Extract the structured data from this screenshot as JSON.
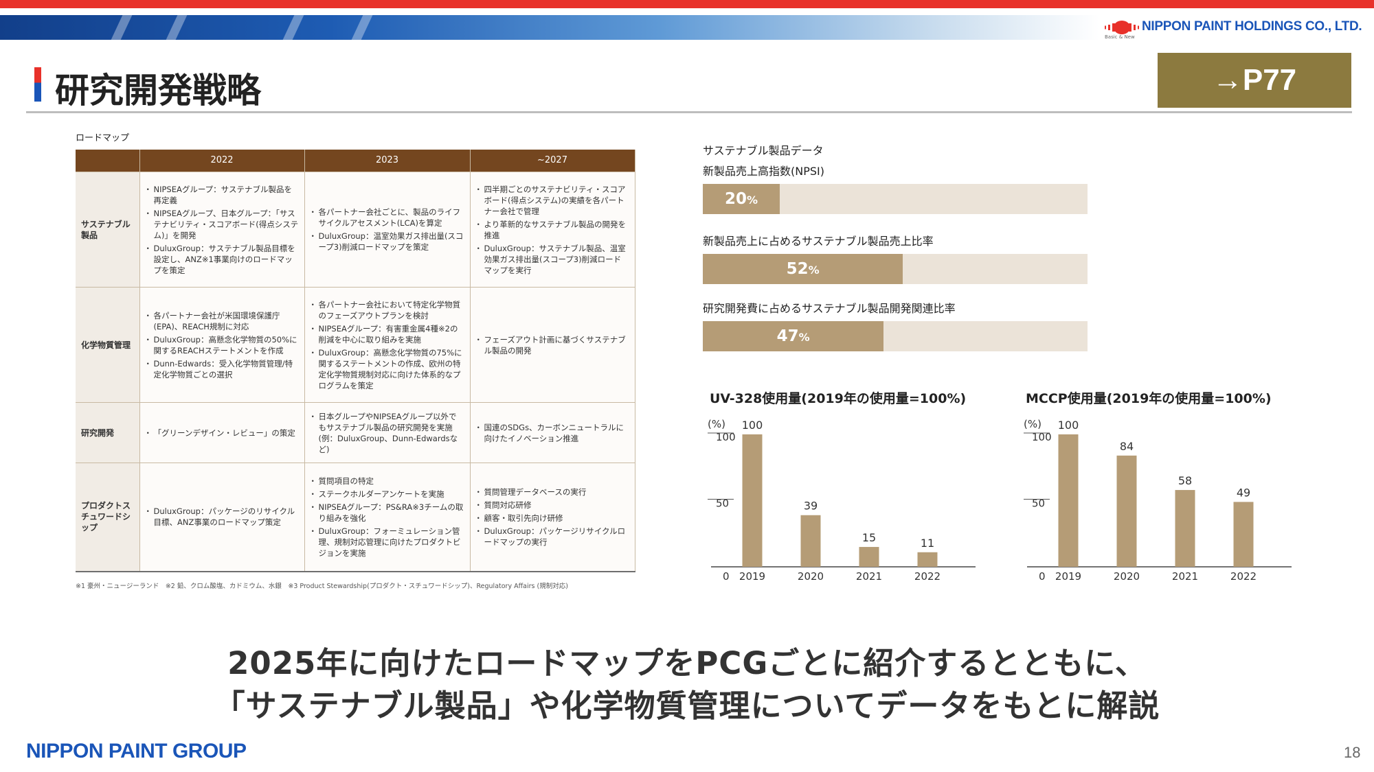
{
  "header": {
    "company_name": "NIPPON PAINT HOLDINGS CO., LTD.",
    "logo_tagline": "Basic & New",
    "title": "研究開発戦略",
    "page_ref": "→P77"
  },
  "roadmap": {
    "label": "ロードマップ",
    "columns": [
      "2022",
      "2023",
      "~2027"
    ],
    "rows": [
      {
        "name": "サステナブル製品",
        "cells": [
          [
            "NIPSEAグループ：サステナブル製品を再定義",
            "NIPSEAグループ、日本グループ：「サステナビリティ・スコアボード(得点システム)」を開発",
            "DuluxGroup：サステナブル製品目標を設定し、ANZ※1事業向けのロードマップを策定"
          ],
          [
            "各パートナー会社ごとに、製品のライフサイクルアセスメント(LCA)を算定",
            "DuluxGroup：温室効果ガス排出量(スコープ3)削減ロードマップを策定"
          ],
          [
            "四半期ごとのサステナビリティ・スコアボード(得点システム)の実績を各パートナー会社で管理",
            "より革新的なサステナブル製品の開発を推進",
            "DuluxGroup：サステナブル製品、温室効果ガス排出量(スコープ3)削減ロードマップを実行"
          ]
        ]
      },
      {
        "name": "化学物質管理",
        "cells": [
          [
            "各パートナー会社が米国環境保護庁(EPA)、REACH規制に対応",
            "DuluxGroup：高懸念化学物質の50%に関するREACHステートメントを作成",
            "Dunn-Edwards：受入化学物質管理/特定化学物質ごとの選択"
          ],
          [
            "各パートナー会社において特定化学物質のフェーズアウトプランを検討",
            "NIPSEAグループ：有害重金属4種※2の削減を中心に取り組みを実施",
            "DuluxGroup：高懸念化学物質の75%に関するステートメントの作成、欧州の特定化学物質規制対応に向けた体系的なプログラムを策定"
          ],
          [
            "フェーズアウト計画に基づくサステナブル製品の開発"
          ]
        ]
      },
      {
        "name": "研究開発",
        "cells": [
          [
            "「グリーンデザイン・レビュー」の策定"
          ],
          [
            "日本グループやNIPSEAグループ以外でもサステナブル製品の研究開発を実施(例：DuluxGroup、Dunn-Edwardsなど)"
          ],
          [
            "国連のSDGs、カーボンニュートラルに向けたイノベーション推進"
          ]
        ]
      },
      {
        "name": "プロダクトスチュワードシップ",
        "cells": [
          [
            "DuluxGroup：パッケージのリサイクル目標、ANZ事業のロードマップ策定"
          ],
          [
            "質問項目の特定",
            "ステークホルダーアンケートを実施",
            "NIPSEAグループ：PS&RA※3チームの取り組みを強化",
            "DuluxGroup：フォーミュレーション管理、規制対応管理に向けたプロダクトビジョンを実施"
          ],
          [
            "質問管理データベースの実行",
            "質問対応研修",
            "顧客・取引先向け研修",
            "DuluxGroup：パッケージリサイクルロードマップの実行"
          ]
        ]
      }
    ],
    "footnote": "※1 豪州・ニュージーランド　※2 鉛、クロム酸塩、カドミウム、水銀　※3 Product Stewardship(プロダクト・スチュワードシップ)、Regulatory Affairs (規制対応)"
  },
  "sustainable_data": {
    "title": "サステナブル製品データ",
    "bars": [
      {
        "label": "新製品売上高指数(NPSI)",
        "value": 20,
        "display": "20",
        "unit": "%"
      },
      {
        "label": "新製品売上に占めるサステナブル製品売上比率",
        "value": 52,
        "display": "52",
        "unit": "%"
      },
      {
        "label": "研究開発費に占めるサステナブル製品開発関連比率",
        "value": 47,
        "display": "47",
        "unit": "%"
      }
    ]
  },
  "chart_data": [
    {
      "type": "bar",
      "title": "UV-328使用量(2019年の使用量=100%)",
      "ylabel": "(%)",
      "categories": [
        "2019",
        "2020",
        "2021",
        "2022"
      ],
      "values": [
        100,
        39,
        15,
        11
      ],
      "ylim": [
        0,
        100
      ],
      "yticks": [
        "0",
        "50",
        "100"
      ],
      "color": "#b59c76"
    },
    {
      "type": "bar",
      "title": "MCCP使用量(2019年の使用量=100%)",
      "ylabel": "(%)",
      "categories": [
        "2019",
        "2020",
        "2021",
        "2022"
      ],
      "values": [
        100,
        84,
        58,
        49
      ],
      "ylim": [
        0,
        100
      ],
      "yticks": [
        "0",
        "50",
        "100"
      ],
      "color": "#b59c76"
    }
  ],
  "message": {
    "line1": "2025年に向けたロードマップをPCGごとに紹介するとともに、",
    "line2": "「サステナブル製品」や化学物質管理についてデータをもとに解説"
  },
  "footer": {
    "group_name": "NIPPON PAINT GROUP",
    "page_number": "18"
  },
  "colors": {
    "brand_blue": "#1a55b8",
    "brand_red": "#e8312a",
    "table_header": "#74461f",
    "bar_color": "#b59c76",
    "ref_box": "#8c7a3f"
  }
}
